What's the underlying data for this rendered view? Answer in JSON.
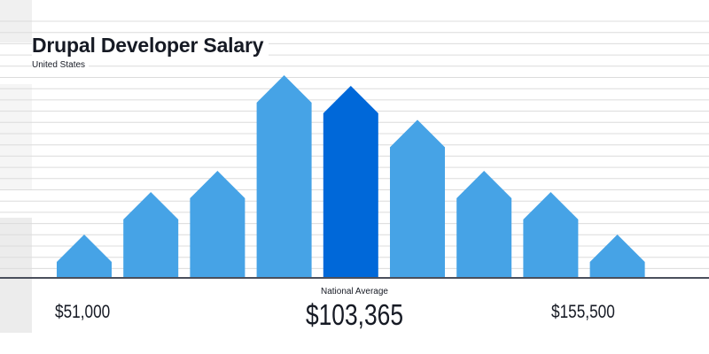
{
  "chart_data": {
    "type": "bar",
    "title": "Drupal Developer Salary",
    "subtitle": "United States",
    "values": [
      2,
      4,
      5,
      9.5,
      9,
      7.4,
      5,
      4,
      2
    ],
    "highlight_index": 4,
    "ylim": [
      0,
      10
    ],
    "grid": true,
    "colors": {
      "bar": "#46a3e6",
      "highlight": "#0068d9",
      "gridline": "#dcdcdc",
      "baseline": "#4a4f5c",
      "text": "#161a24"
    },
    "axis_labels": {
      "min": "$51,000",
      "max": "$155,500",
      "average_caption": "National Average",
      "average_value": "$103,365"
    }
  }
}
